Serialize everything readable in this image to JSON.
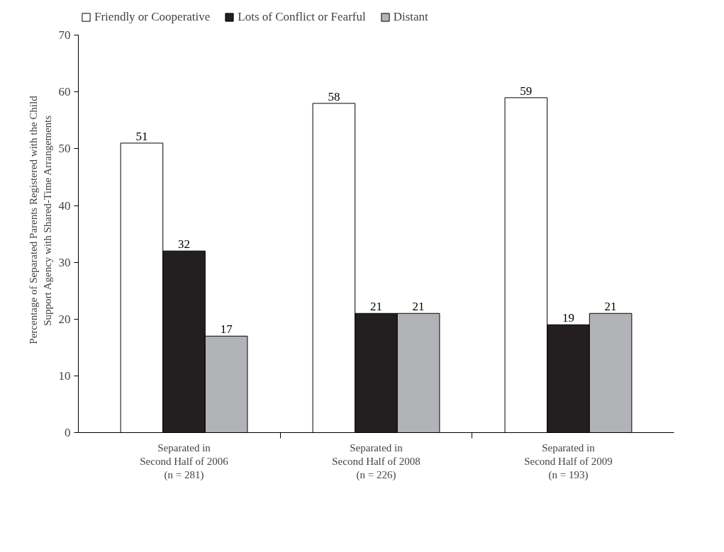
{
  "chart_data": {
    "type": "bar",
    "ylabel": "Percentage of Separated Parents Registered with the Child\nSupport Agency with Shared-Time Arrangements",
    "categories": [
      "Separated in\nSecond Half of 2006\n(n = 281)",
      "Separated in\nSecond Half of 2008\n(n = 226)",
      "Separated in\nSecond Half of 2009\n(n = 193)"
    ],
    "series": [
      {
        "name": "Friendly or Cooperative",
        "color": "#ffffff",
        "values": [
          51,
          58,
          59
        ]
      },
      {
        "name": "Lots of Conflict or Fearful",
        "color": "#231f20",
        "values": [
          32,
          21,
          19
        ]
      },
      {
        "name": "Distant",
        "color": "#b1b3b6",
        "values": [
          17,
          21,
          21
        ]
      }
    ],
    "ylim": [
      0,
      70
    ],
    "yticks": [
      0,
      10,
      20,
      30,
      40,
      50,
      60,
      70
    ],
    "data_labels": true,
    "grid": false,
    "legend": "top"
  }
}
